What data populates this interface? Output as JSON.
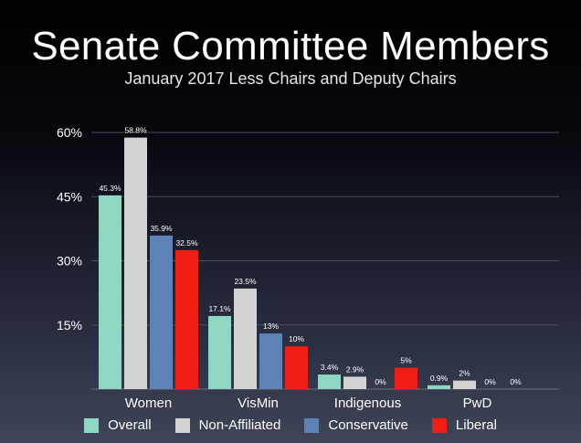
{
  "chart_data": {
    "type": "bar",
    "title": "Senate Committee Members",
    "subtitle": "January 2017 Less Chairs and Deputy Chairs",
    "categories": [
      "Women",
      "VisMin",
      "Indigenous",
      "PwD"
    ],
    "series": [
      {
        "name": "Overall",
        "color": "#8fd6c3",
        "values": [
          45.3,
          17.1,
          3.4,
          0.9
        ],
        "labels": [
          "45.3%",
          "17.1%",
          "3.4%",
          "0.9%"
        ]
      },
      {
        "name": "Non-Affiliated",
        "color": "#d3d3d3",
        "values": [
          58.8,
          23.5,
          2.9,
          2
        ],
        "labels": [
          "58.8%",
          "23.5%",
          "2.9%",
          "2%"
        ]
      },
      {
        "name": "Conservative",
        "color": "#5c82b6",
        "values": [
          35.9,
          13,
          0,
          0
        ],
        "labels": [
          "35.9%",
          "13%",
          "0%",
          "0%"
        ]
      },
      {
        "name": "Liberal",
        "color": "#f01e14",
        "values": [
          32.5,
          10,
          5,
          0
        ],
        "labels": [
          "32.5%",
          "10%",
          "5%",
          "0%"
        ]
      }
    ],
    "ylim": [
      0,
      60
    ],
    "yticks": [
      15,
      30,
      45,
      60
    ],
    "ytick_labels": [
      "15%",
      "30%",
      "45%",
      "60%"
    ],
    "grid": true,
    "legend_position": "bottom"
  }
}
